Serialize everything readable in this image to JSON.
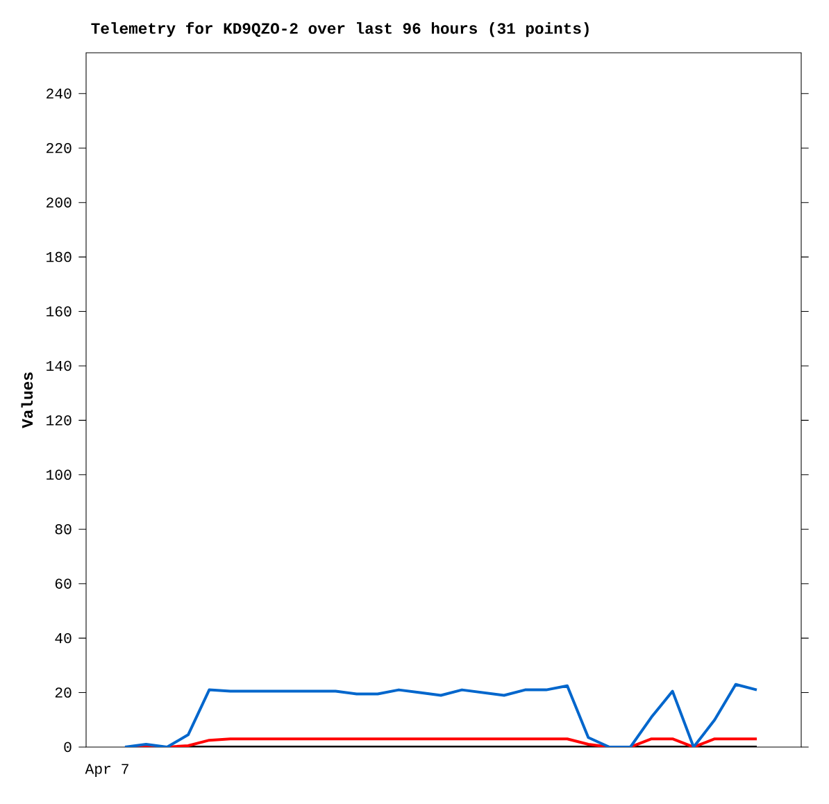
{
  "chart_data": {
    "type": "line",
    "title": "Telemetry for KD9QZO-2 over last 96 hours (31 points)",
    "ylabel": "Values",
    "categories": [
      null,
      null,
      null,
      null,
      null,
      null,
      null,
      null,
      null,
      null,
      null,
      null,
      null,
      null,
      null,
      null,
      null,
      null,
      null,
      null,
      null,
      null,
      null,
      null,
      null,
      null,
      null,
      null,
      null,
      null,
      null
    ],
    "series": [
      {
        "color": "#000000",
        "values": [
          0,
          0,
          0,
          0,
          0,
          0,
          0,
          0,
          0,
          0,
          0,
          0,
          0,
          0,
          0,
          0,
          0,
          0,
          0,
          0,
          0,
          0,
          0,
          0,
          0,
          0,
          0,
          0,
          0,
          0,
          0
        ]
      },
      {
        "color": "#ff0000",
        "values": [
          0,
          0,
          0,
          0.5,
          2.5,
          3,
          3,
          3,
          3,
          3,
          3,
          3,
          3,
          3,
          3,
          3,
          3,
          3,
          3,
          3,
          3,
          3,
          1,
          0,
          0,
          3,
          3,
          0,
          3,
          3,
          3
        ]
      },
      {
        "color": "#0066cc",
        "values": [
          0,
          1,
          0,
          4.5,
          21,
          20.5,
          20.5,
          20.5,
          20.5,
          20.5,
          20.5,
          19.5,
          19.5,
          21,
          20,
          19,
          21,
          20,
          19,
          21,
          21,
          22.5,
          3.5,
          0,
          0,
          11,
          20.5,
          0,
          10,
          23,
          21
        ]
      }
    ],
    "annotations": [
      "Apr 7"
    ],
    "ylim": [
      0,
      255
    ],
    "yticks": [
      0,
      20,
      40,
      60,
      80,
      100,
      120,
      140,
      160,
      180,
      200,
      220,
      240
    ],
    "grid": false,
    "marker": "none",
    "line_style": "solid"
  }
}
